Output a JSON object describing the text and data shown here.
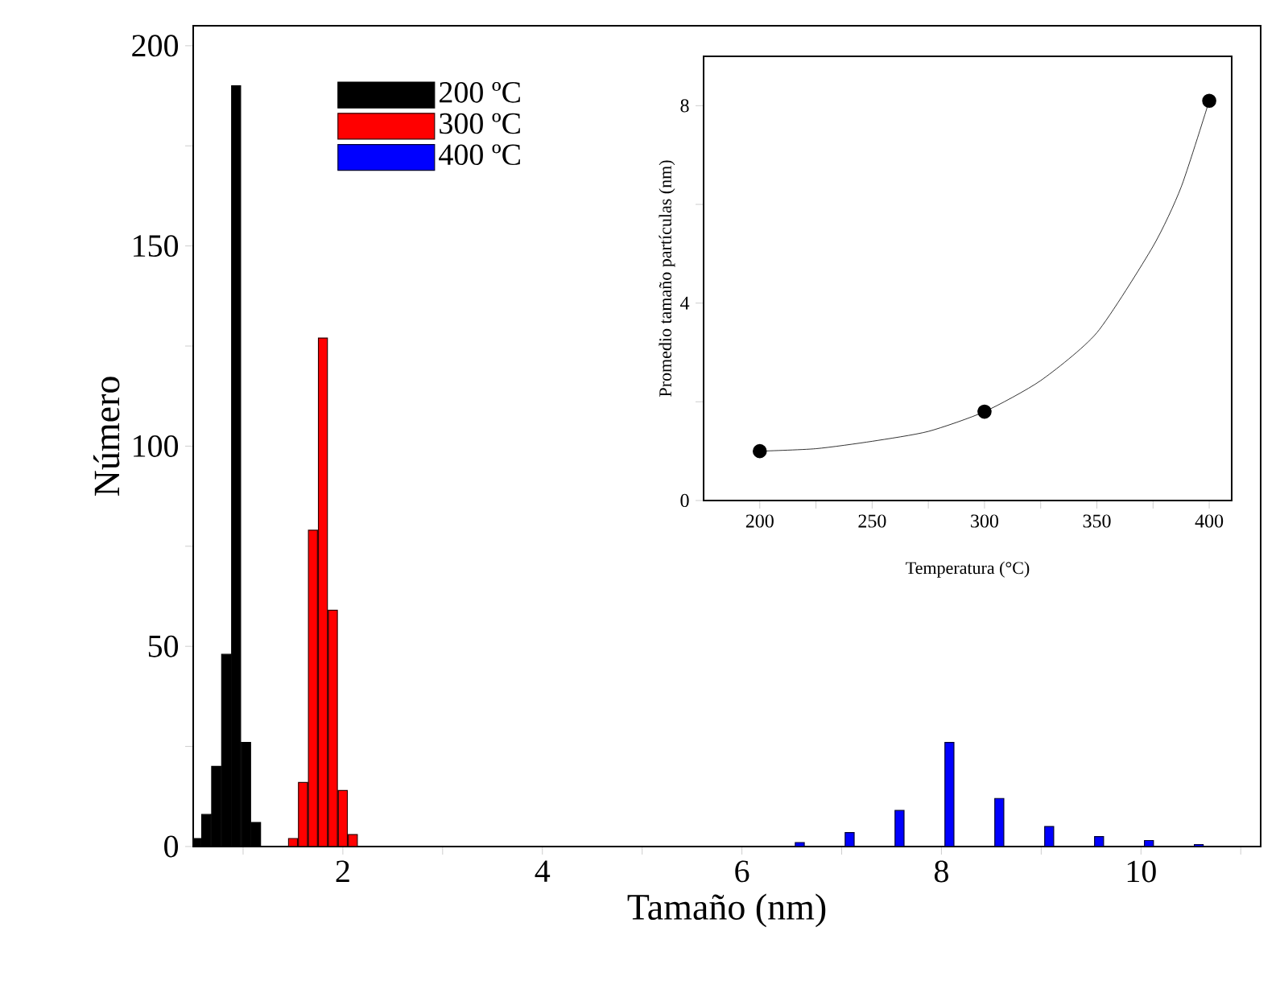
{
  "chart_data": [
    {
      "type": "bar",
      "xlabel": "Tamaño (nm)",
      "ylabel": "Número",
      "xlim": [
        0.5,
        11.2
      ],
      "ylim": [
        0,
        205
      ],
      "xticks": [
        {
          "value": 1,
          "label": null
        },
        2,
        {
          "value": 3,
          "label": null
        },
        4,
        {
          "value": 5,
          "label": null
        },
        6,
        {
          "value": 7,
          "label": null
        },
        8,
        {
          "value": 9,
          "label": null
        },
        10,
        {
          "value": 11,
          "label": null
        }
      ],
      "yticks": [
        0,
        {
          "value": 25,
          "label": null
        },
        50,
        {
          "value": 75,
          "label": null
        },
        100,
        {
          "value": 125,
          "label": null
        },
        150,
        {
          "value": 175,
          "label": null
        },
        200
      ],
      "legend": "top left",
      "series": [
        {
          "name": "200 ºC",
          "color": "#000000",
          "x": [
            0.53,
            0.63,
            0.73,
            0.83,
            0.93,
            1.03,
            1.13
          ],
          "values": [
            2,
            8,
            20,
            48,
            190,
            26,
            6
          ]
        },
        {
          "name": "300 ºC",
          "color": "#ff0000",
          "x": [
            1.5,
            1.6,
            1.7,
            1.8,
            1.9,
            2.0,
            2.1
          ],
          "values": [
            2,
            16,
            79,
            127,
            59,
            14,
            3
          ]
        },
        {
          "name": "400 ºC",
          "color": "#0000ff",
          "x": [
            6.58,
            7.08,
            7.58,
            8.08,
            8.58,
            9.08,
            9.58,
            10.08,
            10.58
          ],
          "values": [
            1,
            3.5,
            9,
            26,
            12,
            5,
            2.5,
            1.5,
            0.5
          ]
        }
      ]
    },
    {
      "type": "scatter",
      "xlabel": "Temperatura (°C)",
      "ylabel": "Promedio tamaño partículas (nm)",
      "xlim": [
        175,
        410
      ],
      "ylim": [
        0,
        9
      ],
      "xticks": [
        200,
        {
          "value": 225,
          "label": null
        },
        250,
        {
          "value": 275,
          "label": null
        },
        300,
        {
          "value": 325,
          "label": null
        },
        350,
        {
          "value": 375,
          "label": null
        },
        400
      ],
      "yticks": [
        0,
        {
          "value": 2,
          "label": null
        },
        4,
        {
          "value": 6,
          "label": null
        },
        8
      ],
      "series": [
        {
          "type": "line",
          "marker": "none",
          "color": "#000000",
          "x": [
            200,
            225,
            250,
            275,
            300,
            325,
            350,
            375,
            387.5,
            400
          ],
          "values": [
            1.0,
            1.05,
            1.2,
            1.4,
            1.8,
            2.43,
            3.4,
            5.15,
            6.35,
            8.1
          ]
        },
        {
          "type": "scatter",
          "marker": "circle",
          "color": "#000000",
          "x": [
            200,
            300,
            400
          ],
          "values": [
            1.0,
            1.8,
            8.1
          ]
        }
      ]
    }
  ]
}
